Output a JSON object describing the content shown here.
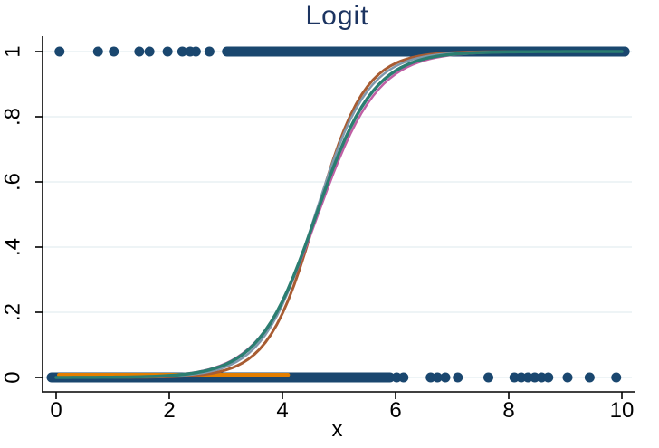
{
  "chart_data": {
    "type": "scatter+line",
    "title": "Logit",
    "xlabel": "x",
    "ylabel": "",
    "xlim": [
      0,
      10
    ],
    "ylim": [
      0,
      1
    ],
    "x_ticks": [
      {
        "value": 0,
        "label": "0"
      },
      {
        "value": 2,
        "label": "2"
      },
      {
        "value": 4,
        "label": "4"
      },
      {
        "value": 6,
        "label": "6"
      },
      {
        "value": 8,
        "label": "8"
      },
      {
        "value": 10,
        "label": "10"
      }
    ],
    "y_ticks": [
      {
        "value": 0,
        "label": "0"
      },
      {
        "value": 0.2,
        "label": ".2"
      },
      {
        "value": 0.4,
        "label": ".4"
      },
      {
        "value": 0.6,
        "label": ".6"
      },
      {
        "value": 0.8,
        "label": ".8"
      },
      {
        "value": 1,
        "label": "1"
      }
    ],
    "grid": {
      "show": true,
      "color": "#e9f1f3",
      "orientation": "horizontal"
    },
    "title_color": "#1c3461",
    "axis_color": "#000000",
    "scatter": {
      "description": "binary outcome points clustered at y=0 and y=1",
      "marker_color": "#1a476f",
      "marker_radius": 5.5,
      "y1_sparse_x": [
        0.06,
        0.74,
        1.02,
        1.47,
        1.65,
        1.97,
        2.23,
        2.37,
        2.47,
        2.71
      ],
      "y1_band_x": [
        3.02,
        10.05
      ],
      "y0_band_x": [
        -0.08,
        5.9
      ],
      "y0_sparse_x": [
        6.02,
        6.14,
        6.62,
        6.74,
        6.88,
        7.1,
        7.64,
        8.1,
        8.22,
        8.34,
        8.46,
        8.58,
        8.7,
        9.04,
        9.43,
        9.9
      ]
    },
    "fit_curves": [
      {
        "name": "sienna-fit",
        "color": "#a85c32",
        "shape": "logistic",
        "k": 2.35,
        "x0": 4.6,
        "width": 3.0
      },
      {
        "name": "slate-fit",
        "color": "#8098ad",
        "shape": "logistic",
        "k": 2.15,
        "x0": 4.58,
        "width": 2.5
      },
      {
        "name": "magenta-fit",
        "color": "#bf5fa4",
        "shape": "logistic",
        "k": 1.9,
        "x0": 4.63,
        "width": 2.5
      },
      {
        "name": "teal-fit",
        "color": "#2b7e71",
        "shape": "logistic",
        "k": 1.98,
        "x0": 4.6,
        "width": 3.5
      }
    ],
    "flat_segment": {
      "name": "orange-flat-fit",
      "color": "#e37e00",
      "x_start": 0.05,
      "x_end": 4.1,
      "y": 0.008,
      "width": 4.2
    }
  }
}
